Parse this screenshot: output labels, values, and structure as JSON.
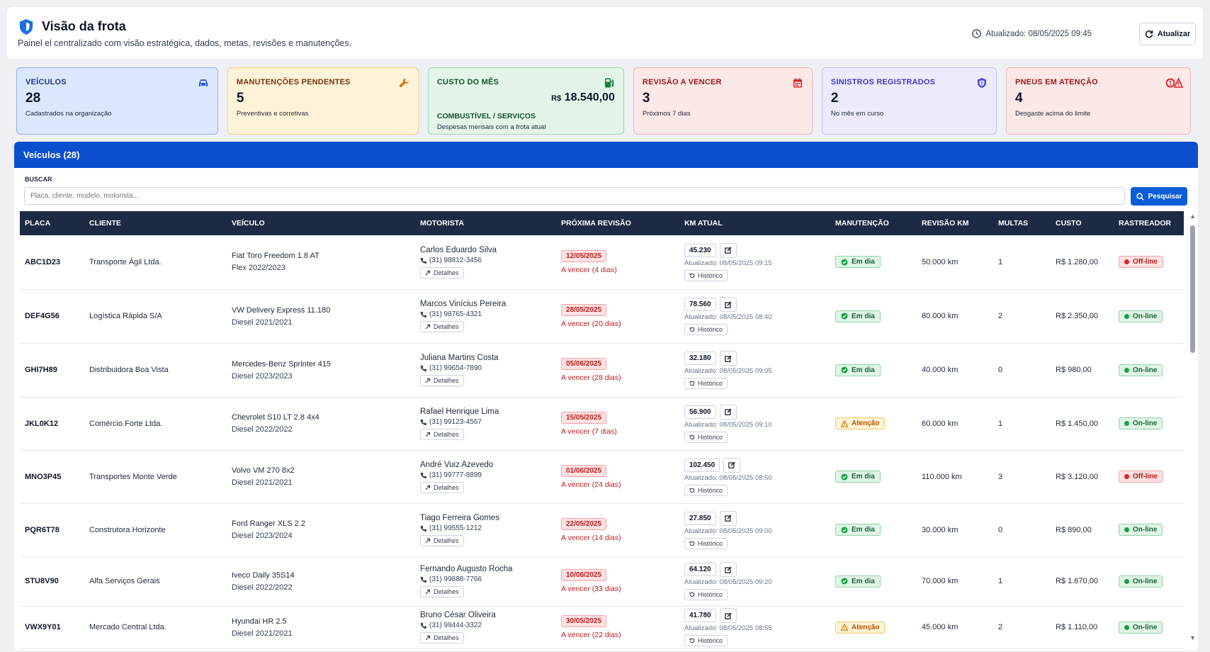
{
  "header": {
    "title": "Visão da frota",
    "subtitle": "Painel el centralizado com visão estratégica, dados, metas, revisões e manutenções.",
    "updated": "Atualizado: 08/05/2025 09:45",
    "refresh_label": "Atualizar"
  },
  "cards": [
    {
      "label": "Veículos",
      "value": "28",
      "sub": "Cadastrados na organização",
      "icon": "car-icon",
      "color": "#1d4ed8"
    },
    {
      "label": "Manutenções pendentes",
      "value": "5",
      "sub": "Preventivas e corretivas",
      "icon": "wrench-icon",
      "color": "#d97706"
    },
    {
      "label": "Custo do mês",
      "money_prefix": "R$",
      "money": "18.540,00",
      "sublabel": "Combustível / Serviços",
      "sub": "Despesas mensais com a frota atual",
      "icon": "fuel-icon",
      "color": "#15803d"
    },
    {
      "label": "Revisão a vencer",
      "value": "3",
      "sub": "Próximos 7 dias",
      "icon": "calendar-icon",
      "color": "#dc2626"
    },
    {
      "label": "Sinistros registrados",
      "value": "2",
      "sub": "No mês em curso",
      "icon": "shield-alert-icon",
      "color": "#4f46e5"
    },
    {
      "label": "Pneus em atenção",
      "value": "4",
      "sub": "Desgaste acima do limite",
      "icon": "tire-warning-icon",
      "color": "#dc2626"
    }
  ],
  "vehicles_panel": {
    "title": "Veículos (28)",
    "search_label": "BUSCAR",
    "search_placeholder": "Placa, cliente, modelo, motorista...",
    "search_button": "Pesquisar",
    "columns": [
      "Placa",
      "Cliente",
      "Veículo",
      "Motorista",
      "Próxima revisão",
      "KM atual",
      "Manutenção",
      "Revisão KM",
      "Multas",
      "Custo",
      "Rastreador"
    ],
    "details_label": "Detalhes",
    "history_label": "Histórico"
  },
  "rows": [
    {
      "plate": "ABC1D23",
      "client": "Transporte Ágil Ltda.",
      "vehicle": "Fiat Toro Freedom 1.8 AT",
      "vehicle_sub": "Flex 2022/2023",
      "driver": "Carlos Eduardo Silva",
      "phone": "(31) 98812-3456",
      "review_date": "12/05/2025",
      "review_due": "A vencer (4 dias)",
      "km": "45.230",
      "km_updated": "Atualizado: 08/05/2025 09:15",
      "maintenance": "Em dia",
      "maintenance_status": "ok",
      "review_km": "50.000 km",
      "fines": "1",
      "cost": "R$ 1.280,00",
      "tracker": "Off-line",
      "tracker_status": "off"
    },
    {
      "plate": "DEF4G56",
      "client": "Logística Rápida S/A",
      "vehicle": "VW Delivery Express 11.180",
      "vehicle_sub": "Diesel 2021/2021",
      "driver": "Marcos Vinícius Pereira",
      "phone": "(31) 98765-4321",
      "review_date": "28/05/2025",
      "review_due": "A vencer (20 dias)",
      "km": "78.560",
      "km_updated": "Atualizado: 08/05/2025 08:40",
      "maintenance": "Em dia",
      "maintenance_status": "ok",
      "review_km": "80.000 km",
      "fines": "2",
      "cost": "R$ 2.350,00",
      "tracker": "On-line",
      "tracker_status": "on"
    },
    {
      "plate": "GHI7H89",
      "client": "Distribuidora Boa Vista",
      "vehicle": "Mercedes-Benz Sprinter 415",
      "vehicle_sub": "Diesel 2023/2023",
      "driver": "Juliana Martins Costa",
      "phone": "(31) 99654-7890",
      "review_date": "05/06/2025",
      "review_due": "A vencer (28 dias)",
      "km": "32.180",
      "km_updated": "Atualizado: 08/05/2025 09:05",
      "maintenance": "Em dia",
      "maintenance_status": "ok",
      "review_km": "40.000 km",
      "fines": "0",
      "cost": "R$ 980,00",
      "tracker": "On-line",
      "tracker_status": "on"
    },
    {
      "plate": "JKL0K12",
      "client": "Comércio Forte Ltda.",
      "vehicle": "Chevrolet S10 LT 2.8 4x4",
      "vehicle_sub": "Diesel 2022/2022",
      "driver": "Rafael Henrique Lima",
      "phone": "(31) 99123-4567",
      "review_date": "15/05/2025",
      "review_due": "A vencer (7 dias)",
      "km": "56.900",
      "km_updated": "Atualizado: 08/05/2025 09:10",
      "maintenance": "Atenção",
      "maintenance_status": "warn",
      "review_km": "60.000 km",
      "fines": "1",
      "cost": "R$ 1.450,00",
      "tracker": "On-line",
      "tracker_status": "on"
    },
    {
      "plate": "MNO3P45",
      "client": "Transportes Monte Verde",
      "vehicle": "Volvo VM 270 8x2",
      "vehicle_sub": "Diesel 2021/2021",
      "driver": "André Vuiz Azevedo",
      "phone": "(31) 99777-8899",
      "review_date": "01/06/2025",
      "review_due": "A vencer (24 dias)",
      "km": "102.450",
      "km_updated": "Atualizado: 08/05/2025 08:50",
      "maintenance": "Em dia",
      "maintenance_status": "ok",
      "review_km": "110.000 km",
      "fines": "3",
      "cost": "R$ 3.120,00",
      "tracker": "Off-line",
      "tracker_status": "off"
    },
    {
      "plate": "PQR6T78",
      "client": "Construtora Horizonte",
      "vehicle": "Ford Ranger XLS 2.2",
      "vehicle_sub": "Diesel 2023/2024",
      "driver": "Tiago Ferreira Gomes",
      "phone": "(31) 99555-1212",
      "review_date": "22/05/2025",
      "review_due": "A vencer (14 dias)",
      "km": "27.850",
      "km_updated": "Atualizado: 08/05/2025 09:00",
      "maintenance": "Em dia",
      "maintenance_status": "ok",
      "review_km": "30.000 km",
      "fines": "0",
      "cost": "R$ 890,00",
      "tracker": "On-line",
      "tracker_status": "on"
    },
    {
      "plate": "STU8V90",
      "client": "Alfa Serviços Gerais",
      "vehicle": "Iveco Daily 35S14",
      "vehicle_sub": "Diesel 2022/2022",
      "driver": "Fernando Augusto Rocha",
      "phone": "(31) 99888-7766",
      "review_date": "10/06/2025",
      "review_due": "A vencer (33 dias)",
      "km": "64.120",
      "km_updated": "Atualizado: 08/05/2025 09:20",
      "maintenance": "Em dia",
      "maintenance_status": "ok",
      "review_km": "70.000 km",
      "fines": "1",
      "cost": "R$ 1.670,00",
      "tracker": "On-line",
      "tracker_status": "on"
    },
    {
      "plate": "VWX9Y01",
      "client": "Mercado Central Ltda.",
      "vehicle": "Hyundai HR 2.5",
      "vehicle_sub": "Diesel 2021/2021",
      "driver": "Bruno César Oliveira",
      "phone": "(31) 99444-3322",
      "review_date": "30/05/2025",
      "review_due": "A vencer (22 dias)",
      "km": "41.780",
      "km_updated": "Atualizado: 08/05/2025 08:55",
      "maintenance": "Atenção",
      "maintenance_status": "warn",
      "review_km": "45.000 km",
      "fines": "2",
      "cost": "R$ 1.110,00",
      "tracker": "On-line",
      "tracker_status": "on"
    }
  ]
}
